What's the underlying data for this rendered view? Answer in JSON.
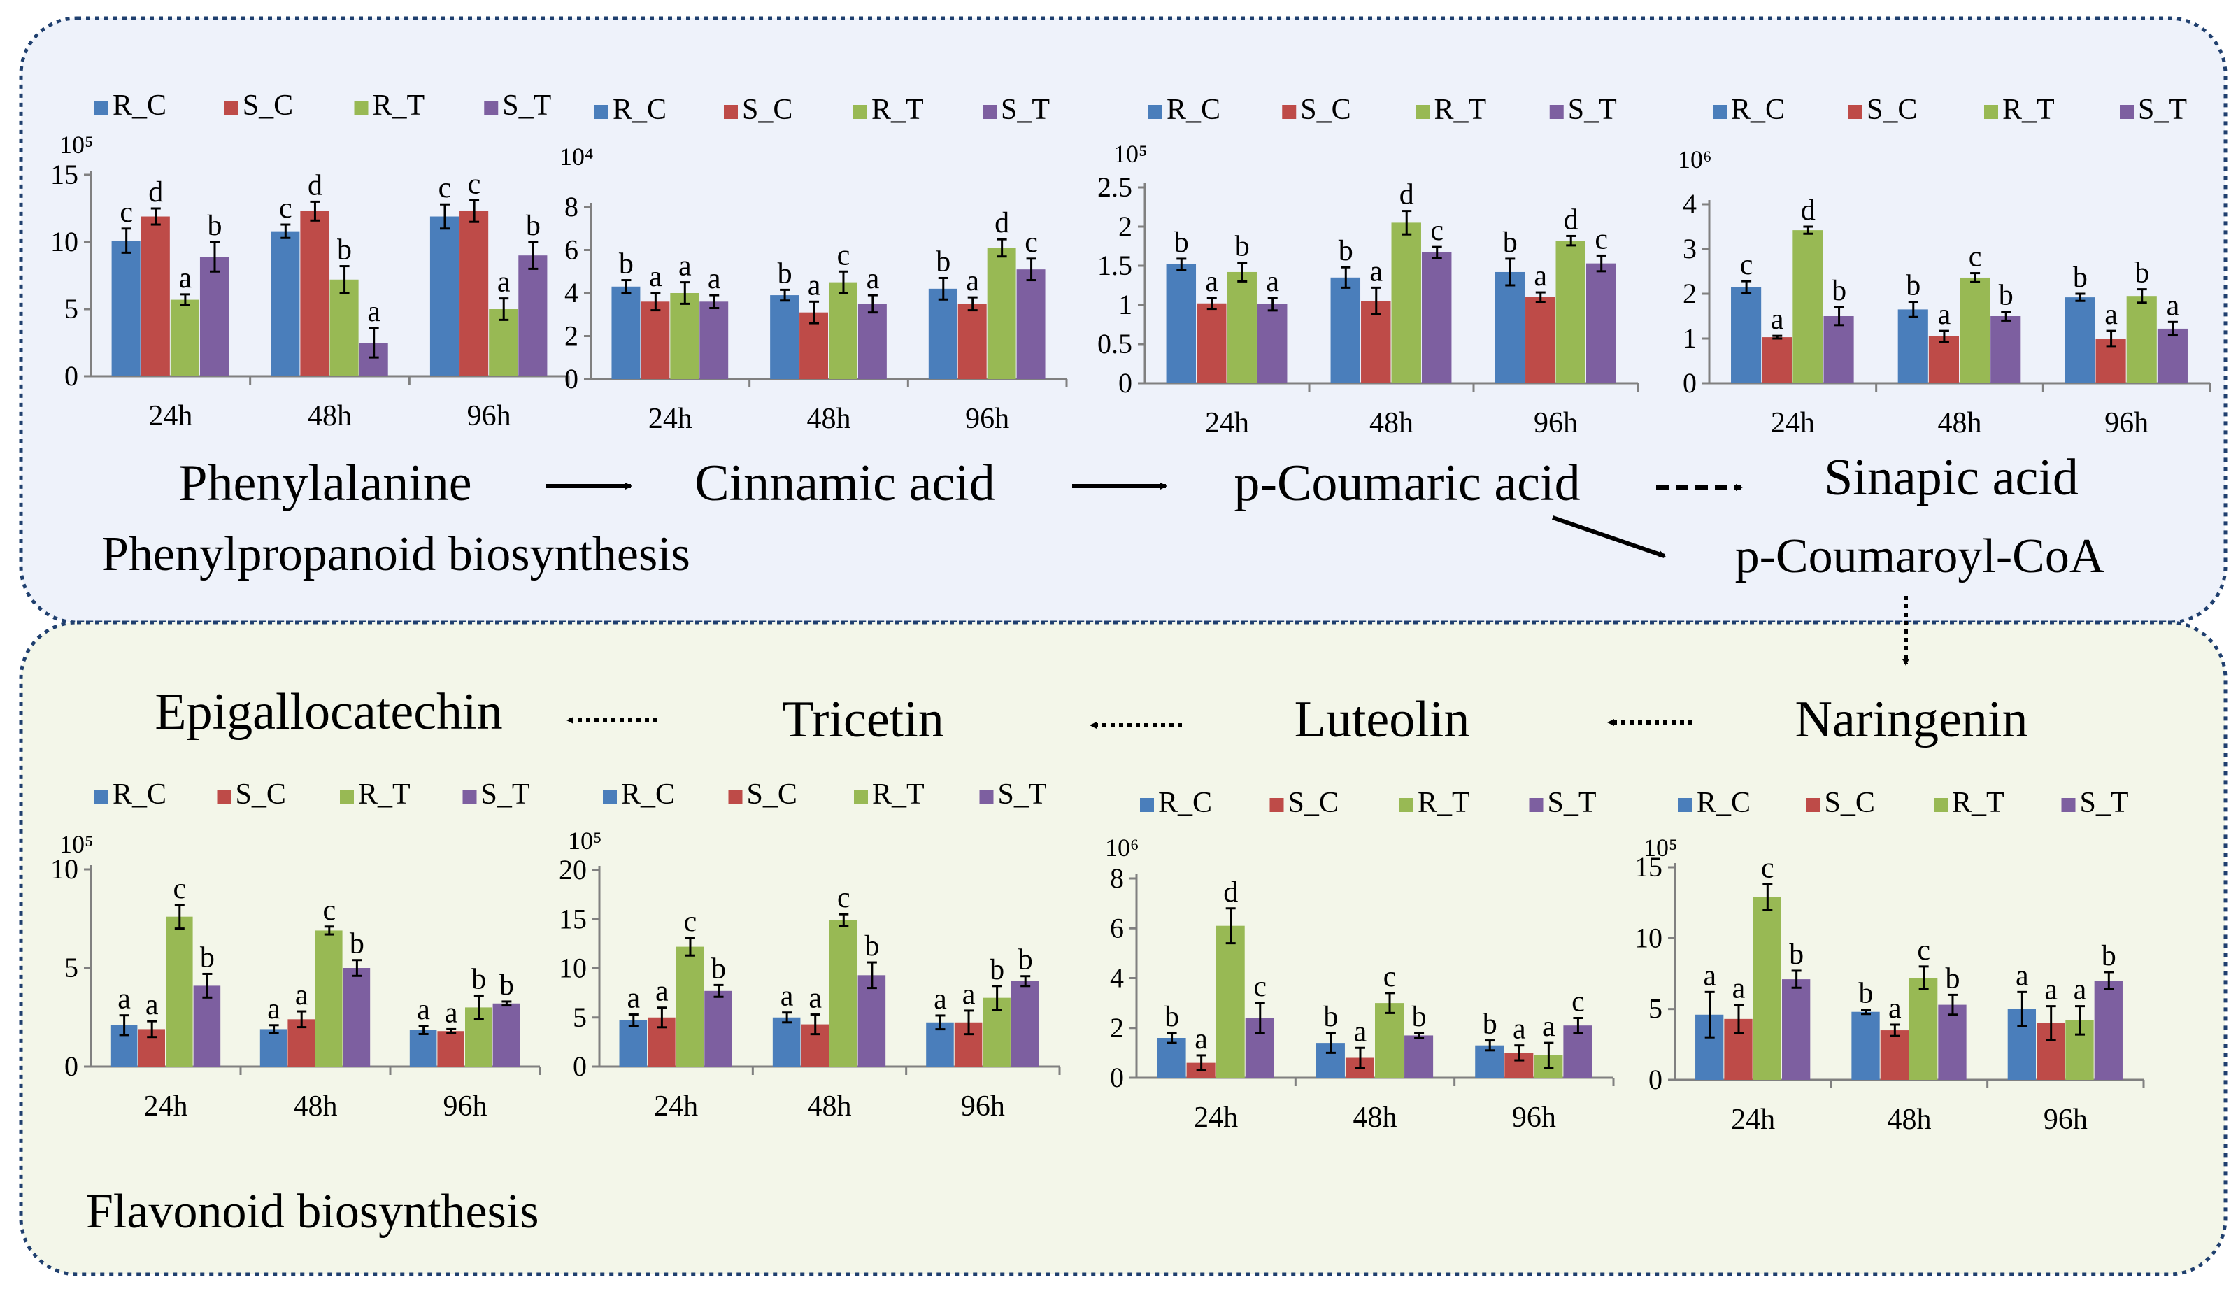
{
  "colors": {
    "R_C": "#4a7ebb",
    "S_C": "#be4b48",
    "R_T": "#98b954",
    "S_T": "#7d5fa0",
    "panel_top_bg": "#eef2fa",
    "panel_bottom_bg": "#f3f6e9",
    "panel_border": "#1f3f6e",
    "section_label": "#ff0000",
    "intermediate_label": "#8c8c8c"
  },
  "legend_labels": [
    "R_C",
    "S_C",
    "R_T",
    "S_T"
  ],
  "categories": [
    "24h",
    "48h",
    "96h"
  ],
  "pathways": {
    "top_title": "Phenylpropanoid biosynthesis",
    "bottom_title": "Flavonoid biosynthesis",
    "intermediate": "p-Coumaroyl-CoA"
  },
  "compound_labels": {
    "phenylalanine": "Phenylalanine",
    "cinnamic": "Cinnamic acid",
    "coumaric": "p-Coumaric acid",
    "sinapic": "Sinapic acid",
    "naringenin": "Naringenin",
    "luteolin": "Luteolin",
    "tricetin": "Tricetin",
    "epigallocatechin": "Epigallocatechin"
  },
  "chart_data": [
    {
      "id": "phenylalanine",
      "type": "bar",
      "title": "Phenylalanine",
      "scale": "10⁵",
      "categories": [
        "24h",
        "48h",
        "96h"
      ],
      "ylim": [
        0,
        15
      ],
      "yticks": [
        0,
        5,
        10,
        15
      ],
      "series": [
        {
          "name": "R_C",
          "values": [
            10.1,
            10.8,
            11.9
          ],
          "errors": [
            0.9,
            0.5,
            0.9
          ],
          "letters": [
            "c",
            "c",
            "c"
          ]
        },
        {
          "name": "S_C",
          "values": [
            11.9,
            12.3,
            12.3
          ],
          "errors": [
            0.6,
            0.7,
            0.8
          ],
          "letters": [
            "d",
            "d",
            "c"
          ]
        },
        {
          "name": "R_T",
          "values": [
            5.7,
            7.2,
            5.0
          ],
          "errors": [
            0.4,
            1.0,
            0.8
          ],
          "letters": [
            "a",
            "b",
            "a"
          ]
        },
        {
          "name": "S_T",
          "values": [
            8.9,
            2.5,
            9.0
          ],
          "errors": [
            1.1,
            1.1,
            1.0
          ],
          "letters": [
            "b",
            "a",
            "b"
          ]
        }
      ]
    },
    {
      "id": "cinnamic",
      "type": "bar",
      "title": "Cinnamic acid",
      "scale": "10⁴",
      "categories": [
        "24h",
        "48h",
        "96h"
      ],
      "ylim": [
        0,
        8
      ],
      "yticks": [
        0,
        2,
        4,
        6,
        8
      ],
      "series": [
        {
          "name": "R_C",
          "values": [
            4.3,
            3.9,
            4.2
          ],
          "errors": [
            0.3,
            0.25,
            0.5
          ],
          "letters": [
            "b",
            "b",
            "b"
          ]
        },
        {
          "name": "S_C",
          "values": [
            3.6,
            3.1,
            3.5
          ],
          "errors": [
            0.4,
            0.5,
            0.3
          ],
          "letters": [
            "a",
            "a",
            "a"
          ]
        },
        {
          "name": "R_T",
          "values": [
            4.0,
            4.5,
            6.1
          ],
          "errors": [
            0.5,
            0.5,
            0.4
          ],
          "letters": [
            "a",
            "c",
            "d"
          ]
        },
        {
          "name": "S_T",
          "values": [
            3.6,
            3.5,
            5.1
          ],
          "errors": [
            0.3,
            0.4,
            0.5
          ],
          "letters": [
            "a",
            "a",
            "c"
          ]
        }
      ]
    },
    {
      "id": "coumaric",
      "type": "bar",
      "title": "p-Coumaric acid",
      "scale": "10⁵",
      "categories": [
        "24h",
        "48h",
        "96h"
      ],
      "ylim": [
        0,
        2.5
      ],
      "yticks": [
        0,
        0.5,
        1,
        1.5,
        2,
        2.5
      ],
      "series": [
        {
          "name": "R_C",
          "values": [
            1.52,
            1.35,
            1.42
          ],
          "errors": [
            0.07,
            0.13,
            0.17
          ],
          "letters": [
            "b",
            "b",
            "b"
          ]
        },
        {
          "name": "S_C",
          "values": [
            1.02,
            1.05,
            1.1
          ],
          "errors": [
            0.07,
            0.17,
            0.06
          ],
          "letters": [
            "a",
            "a",
            "a"
          ]
        },
        {
          "name": "R_T",
          "values": [
            1.42,
            2.05,
            1.82
          ],
          "errors": [
            0.12,
            0.15,
            0.06
          ],
          "letters": [
            "b",
            "d",
            "d"
          ]
        },
        {
          "name": "S_T",
          "values": [
            1.01,
            1.67,
            1.53
          ],
          "errors": [
            0.08,
            0.07,
            0.1
          ],
          "letters": [
            "a",
            "c",
            "c"
          ]
        }
      ]
    },
    {
      "id": "sinapic",
      "type": "bar",
      "title": "Sinapic acid",
      "scale": "10⁶",
      "categories": [
        "24h",
        "48h",
        "96h"
      ],
      "ylim": [
        0,
        4
      ],
      "yticks": [
        0,
        1,
        2,
        3,
        4
      ],
      "series": [
        {
          "name": "R_C",
          "values": [
            2.15,
            1.65,
            1.92
          ],
          "errors": [
            0.13,
            0.17,
            0.08
          ],
          "letters": [
            "c",
            "b",
            "b"
          ]
        },
        {
          "name": "S_C",
          "values": [
            1.03,
            1.05,
            1.0
          ],
          "errors": [
            0.03,
            0.12,
            0.17
          ],
          "letters": [
            "a",
            "a",
            "a"
          ]
        },
        {
          "name": "R_T",
          "values": [
            3.42,
            2.36,
            1.95
          ],
          "errors": [
            0.08,
            0.1,
            0.15
          ],
          "letters": [
            "d",
            "c",
            "b"
          ]
        },
        {
          "name": "S_T",
          "values": [
            1.5,
            1.5,
            1.22
          ],
          "errors": [
            0.2,
            0.1,
            0.15
          ],
          "letters": [
            "b",
            "b",
            "a"
          ]
        }
      ]
    },
    {
      "id": "epigallocatechin",
      "type": "bar",
      "title": "Epigallocatechin",
      "scale": "10⁵",
      "categories": [
        "24h",
        "48h",
        "96h"
      ],
      "ylim": [
        0,
        10
      ],
      "yticks": [
        0,
        5,
        10
      ],
      "series": [
        {
          "name": "R_C",
          "values": [
            2.1,
            1.9,
            1.85
          ],
          "errors": [
            0.5,
            0.2,
            0.2
          ],
          "letters": [
            "a",
            "a",
            "a"
          ]
        },
        {
          "name": "S_C",
          "values": [
            1.9,
            2.4,
            1.8
          ],
          "errors": [
            0.4,
            0.4,
            0.1
          ],
          "letters": [
            "a",
            "a",
            "a"
          ]
        },
        {
          "name": "R_T",
          "values": [
            7.6,
            6.9,
            3.0
          ],
          "errors": [
            0.6,
            0.2,
            0.6
          ],
          "letters": [
            "c",
            "c",
            "b"
          ]
        },
        {
          "name": "S_T",
          "values": [
            4.1,
            5.0,
            3.2
          ],
          "errors": [
            0.6,
            0.4,
            0.1
          ],
          "letters": [
            "b",
            "b",
            "b"
          ]
        }
      ]
    },
    {
      "id": "tricetin",
      "type": "bar",
      "title": "Tricetin",
      "scale": "10⁵",
      "categories": [
        "24h",
        "48h",
        "96h"
      ],
      "ylim": [
        0,
        20
      ],
      "yticks": [
        0,
        5,
        10,
        15,
        20
      ],
      "series": [
        {
          "name": "R_C",
          "values": [
            4.7,
            5.0,
            4.5
          ],
          "errors": [
            0.6,
            0.5,
            0.7
          ],
          "letters": [
            "a",
            "a",
            "a"
          ]
        },
        {
          "name": "S_C",
          "values": [
            5.0,
            4.3,
            4.5
          ],
          "errors": [
            1.0,
            1.0,
            1.2
          ],
          "letters": [
            "a",
            "a",
            "a"
          ]
        },
        {
          "name": "R_T",
          "values": [
            12.2,
            14.9,
            7.0
          ],
          "errors": [
            0.9,
            0.6,
            1.2
          ],
          "letters": [
            "c",
            "c",
            "b"
          ]
        },
        {
          "name": "S_T",
          "values": [
            7.7,
            9.3,
            8.7
          ],
          "errors": [
            0.6,
            1.3,
            0.5
          ],
          "letters": [
            "b",
            "b",
            "b"
          ]
        }
      ]
    },
    {
      "id": "luteolin",
      "type": "bar",
      "title": "Luteolin",
      "scale": "10⁶",
      "categories": [
        "24h",
        "48h",
        "96h"
      ],
      "ylim": [
        0,
        8
      ],
      "yticks": [
        0,
        2,
        4,
        6,
        8
      ],
      "series": [
        {
          "name": "R_C",
          "values": [
            1.6,
            1.4,
            1.3
          ],
          "errors": [
            0.2,
            0.4,
            0.2
          ],
          "letters": [
            "b",
            "b",
            "b"
          ]
        },
        {
          "name": "S_C",
          "values": [
            0.6,
            0.8,
            1.0
          ],
          "errors": [
            0.3,
            0.4,
            0.3
          ],
          "letters": [
            "a",
            "a",
            "a"
          ]
        },
        {
          "name": "R_T",
          "values": [
            6.1,
            3.0,
            0.9
          ],
          "errors": [
            0.7,
            0.4,
            0.5
          ],
          "letters": [
            "d",
            "c",
            "a"
          ]
        },
        {
          "name": "S_T",
          "values": [
            2.4,
            1.7,
            2.1
          ],
          "errors": [
            0.6,
            0.1,
            0.3
          ],
          "letters": [
            "c",
            "b",
            "c"
          ]
        }
      ]
    },
    {
      "id": "naringenin",
      "type": "bar",
      "title": "Naringenin",
      "scale": "10⁵",
      "categories": [
        "24h",
        "48h",
        "96h"
      ],
      "ylim": [
        0,
        15
      ],
      "yticks": [
        0,
        5,
        10,
        15
      ],
      "series": [
        {
          "name": "R_C",
          "values": [
            4.6,
            4.8,
            5.0
          ],
          "errors": [
            1.6,
            0.15,
            1.2
          ],
          "letters": [
            "a",
            "b",
            "a"
          ]
        },
        {
          "name": "S_C",
          "values": [
            4.3,
            3.5,
            4.0
          ],
          "errors": [
            1.0,
            0.4,
            1.2
          ],
          "letters": [
            "a",
            "a",
            "a"
          ]
        },
        {
          "name": "R_T",
          "values": [
            12.9,
            7.2,
            4.2
          ],
          "errors": [
            0.9,
            0.8,
            1.0
          ],
          "letters": [
            "c",
            "c",
            "a"
          ]
        },
        {
          "name": "S_T",
          "values": [
            7.1,
            5.3,
            7.0
          ],
          "errors": [
            0.6,
            0.7,
            0.6
          ],
          "letters": [
            "b",
            "b",
            "b"
          ]
        }
      ]
    }
  ]
}
